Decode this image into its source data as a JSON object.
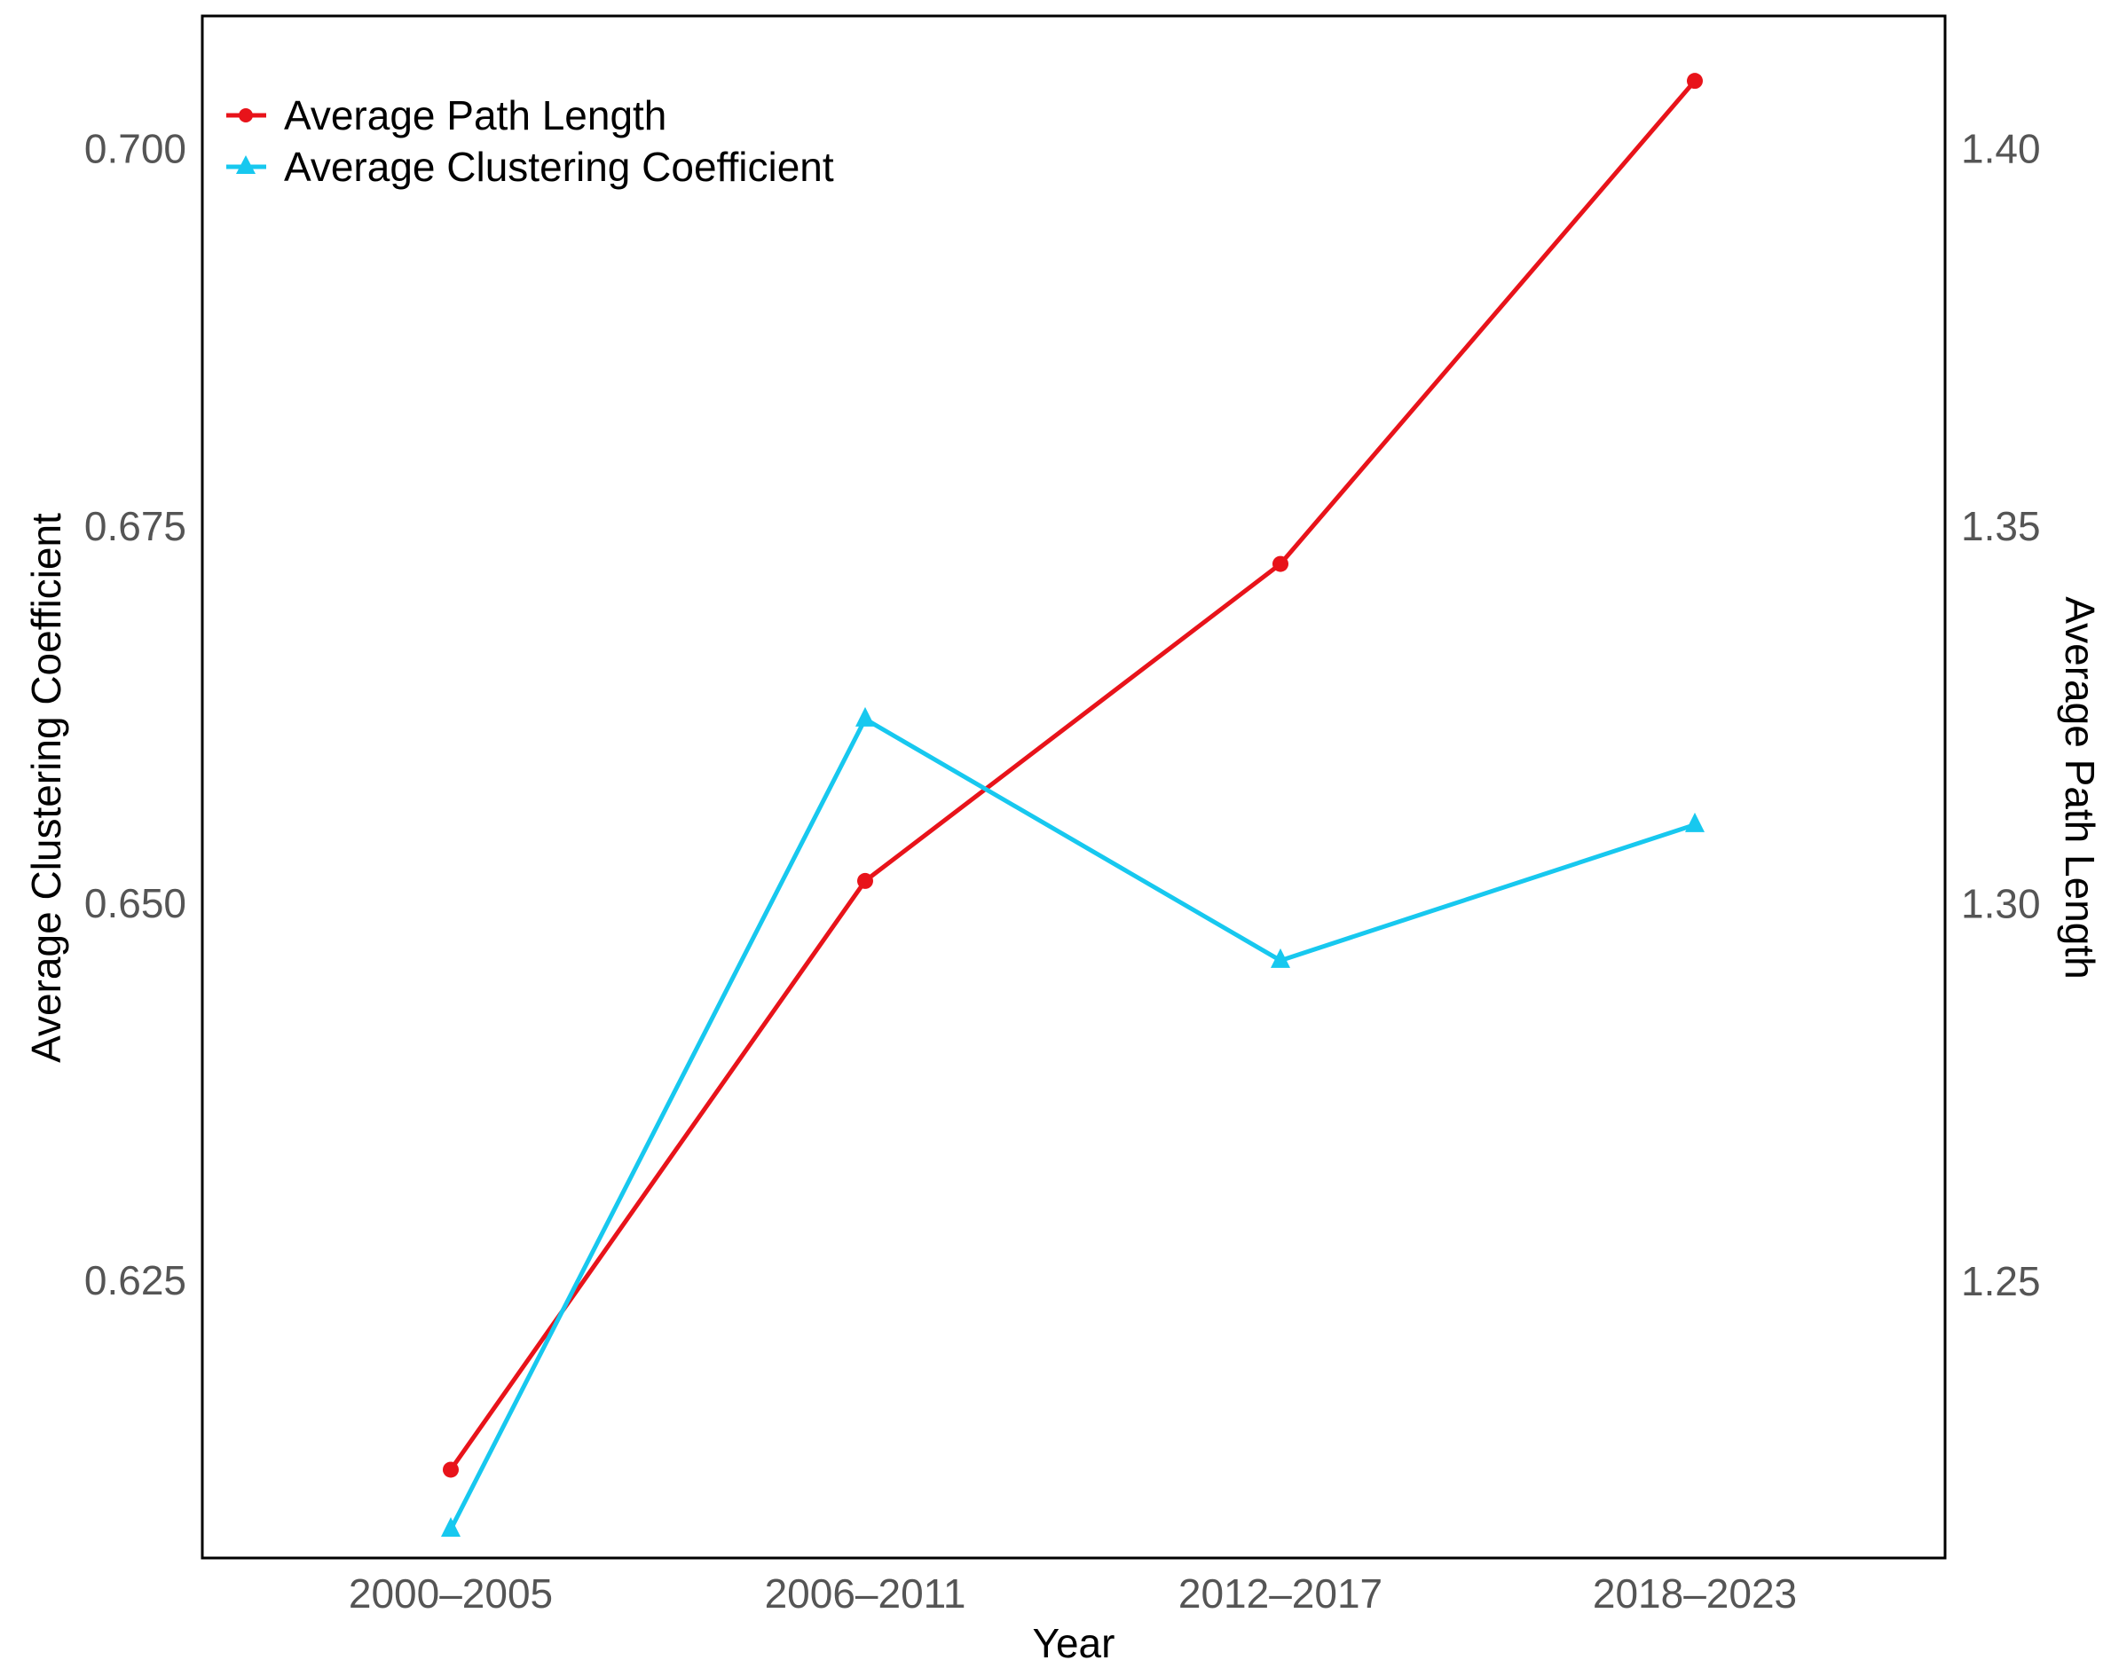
{
  "chart_data": {
    "type": "line",
    "title": "",
    "xlabel": "Year",
    "ylabel_left": "Average Clustering Coefficient",
    "ylabel_right": "Average Path Length",
    "categories": [
      "2000–2005",
      "2006–2011",
      "2012–2017",
      "2018–2023"
    ],
    "left_axis": {
      "ylim": [
        0.6066,
        0.7088
      ],
      "ticks": [
        0.625,
        0.65,
        0.675,
        0.7
      ],
      "tick_labels": [
        "0.625",
        "0.650",
        "0.675",
        "0.700"
      ]
    },
    "right_axis": {
      "ylim": [
        1.2133,
        1.4176
      ],
      "ticks": [
        1.25,
        1.3,
        1.35,
        1.4
      ],
      "tick_labels": [
        "1.25",
        "1.30",
        "1.35",
        "1.40"
      ]
    },
    "series": [
      {
        "name": "Average Path Length",
        "axis": "right",
        "color": "#e8131a",
        "marker": "circle",
        "values": [
          1.225,
          1.303,
          1.345,
          1.409
        ]
      },
      {
        "name": "Average Clustering Coefficient",
        "axis": "left",
        "color": "#17c8ef",
        "marker": "triangle",
        "values": [
          0.6085,
          0.6622,
          0.6462,
          0.6552
        ]
      }
    ],
    "legend_position": "top-left",
    "grid": false
  }
}
